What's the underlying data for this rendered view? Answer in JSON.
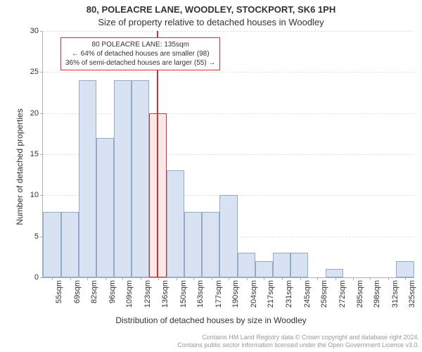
{
  "title_line1": "80, POLEACRE LANE, WOODLEY, STOCKPORT, SK6 1PH",
  "title_line2": "Size of property relative to detached houses in Woodley",
  "y_axis_label": "Number of detached properties",
  "x_axis_label": "Distribution of detached houses by size in Woodley",
  "attribution_line1": "Contains HM Land Registry data © Crown copyright and database right 2024.",
  "attribution_line2": "Contains public sector information licensed under the Open Government Licence v3.0.",
  "chart": {
    "type": "histogram",
    "x_min": 48,
    "x_max": 332,
    "y_min": 0,
    "y_max": 30,
    "y_ticks": [
      0,
      5,
      10,
      15,
      20,
      25,
      30
    ],
    "x_tick_labels": [
      "55sqm",
      "69sqm",
      "82sqm",
      "96sqm",
      "109sqm",
      "123sqm",
      "136sqm",
      "150sqm",
      "163sqm",
      "177sqm",
      "190sqm",
      "204sqm",
      "217sqm",
      "231sqm",
      "245sqm",
      "258sqm",
      "272sqm",
      "285sqm",
      "298sqm",
      "312sqm",
      "325sqm"
    ],
    "x_tick_values": [
      55,
      69,
      82,
      96,
      109,
      123,
      136,
      150,
      163,
      177,
      190,
      204,
      217,
      231,
      245,
      258,
      272,
      285,
      298,
      312,
      325
    ],
    "bar_width_data": 13.5,
    "bars": [
      {
        "x": 48.25,
        "h": 8
      },
      {
        "x": 61.75,
        "h": 8
      },
      {
        "x": 75.25,
        "h": 24
      },
      {
        "x": 88.75,
        "h": 17
      },
      {
        "x": 102.25,
        "h": 24
      },
      {
        "x": 115.75,
        "h": 24
      },
      {
        "x": 129.25,
        "h": 20
      },
      {
        "x": 142.75,
        "h": 13
      },
      {
        "x": 156.25,
        "h": 8
      },
      {
        "x": 169.75,
        "h": 8
      },
      {
        "x": 183.25,
        "h": 10
      },
      {
        "x": 196.75,
        "h": 3
      },
      {
        "x": 210.25,
        "h": 2
      },
      {
        "x": 223.75,
        "h": 3
      },
      {
        "x": 237.25,
        "h": 3
      },
      {
        "x": 250.75,
        "h": 0
      },
      {
        "x": 264.25,
        "h": 1
      },
      {
        "x": 277.75,
        "h": 0
      },
      {
        "x": 291.25,
        "h": 0
      },
      {
        "x": 304.75,
        "h": 0
      },
      {
        "x": 318.25,
        "h": 2
      }
    ],
    "bar_fill": "#d8e2f2",
    "bar_border": "#94a8c8",
    "highlight_bar_index": 6,
    "highlight_bar_fill": "#fce8e8",
    "highlight_bar_border": "#cc3333",
    "vline_x": 135,
    "vline_color": "#cc3333",
    "grid_color": "#e4e4e4",
    "background_color": "#ffffff",
    "axis_color": "#b0b0b0",
    "label_fontsize": 12,
    "tick_fontsize": 11
  },
  "annotation": {
    "line1": "80 POLEACRE LANE: 135sqm",
    "line2": "← 64% of detached houses are smaller (98)",
    "line3": "36% of semi-detached houses are larger (55) →",
    "border_color": "#cc3333",
    "text_color": "#333333"
  }
}
